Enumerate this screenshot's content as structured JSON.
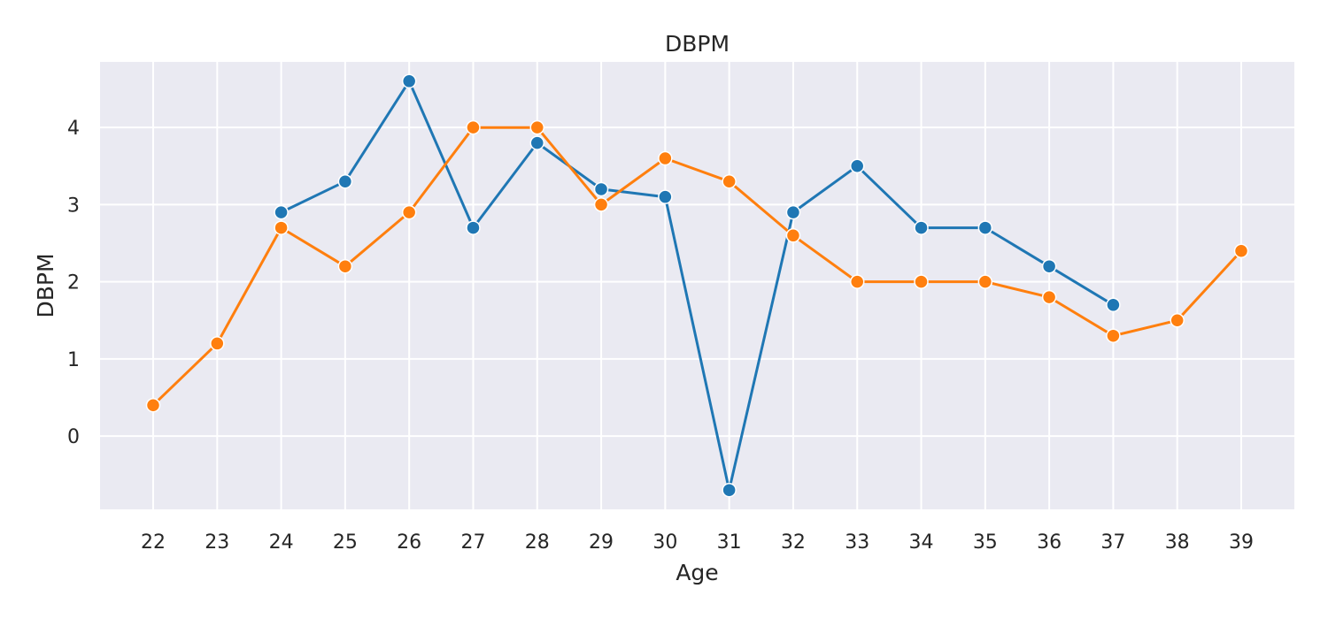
{
  "chart_data": {
    "type": "line",
    "title": "DBPM",
    "xlabel": "Age",
    "ylabel": "DBPM",
    "x": [
      22,
      23,
      24,
      25,
      26,
      27,
      28,
      29,
      30,
      31,
      32,
      33,
      34,
      35,
      36,
      37,
      38,
      39
    ],
    "xlim": [
      21.17,
      39.83
    ],
    "ylim": [
      -0.95,
      4.85
    ],
    "yticks": [
      0,
      1,
      2,
      3,
      4
    ],
    "grid": true,
    "series": [
      {
        "color": "#1f77b4",
        "values": [
          null,
          null,
          2.9,
          3.3,
          4.6,
          2.7,
          3.8,
          3.2,
          3.1,
          -0.7,
          2.9,
          3.5,
          2.7,
          2.7,
          2.2,
          1.7,
          null,
          null
        ]
      },
      {
        "color": "#ff7f0e",
        "values": [
          0.4,
          1.2,
          2.7,
          2.2,
          2.9,
          4.0,
          4.0,
          3.0,
          3.6,
          3.3,
          2.6,
          2.0,
          2.0,
          2.0,
          1.8,
          1.3,
          1.5,
          2.4
        ]
      }
    ],
    "plot_background": "#eaeaf2",
    "grid_color": "#ffffff"
  }
}
